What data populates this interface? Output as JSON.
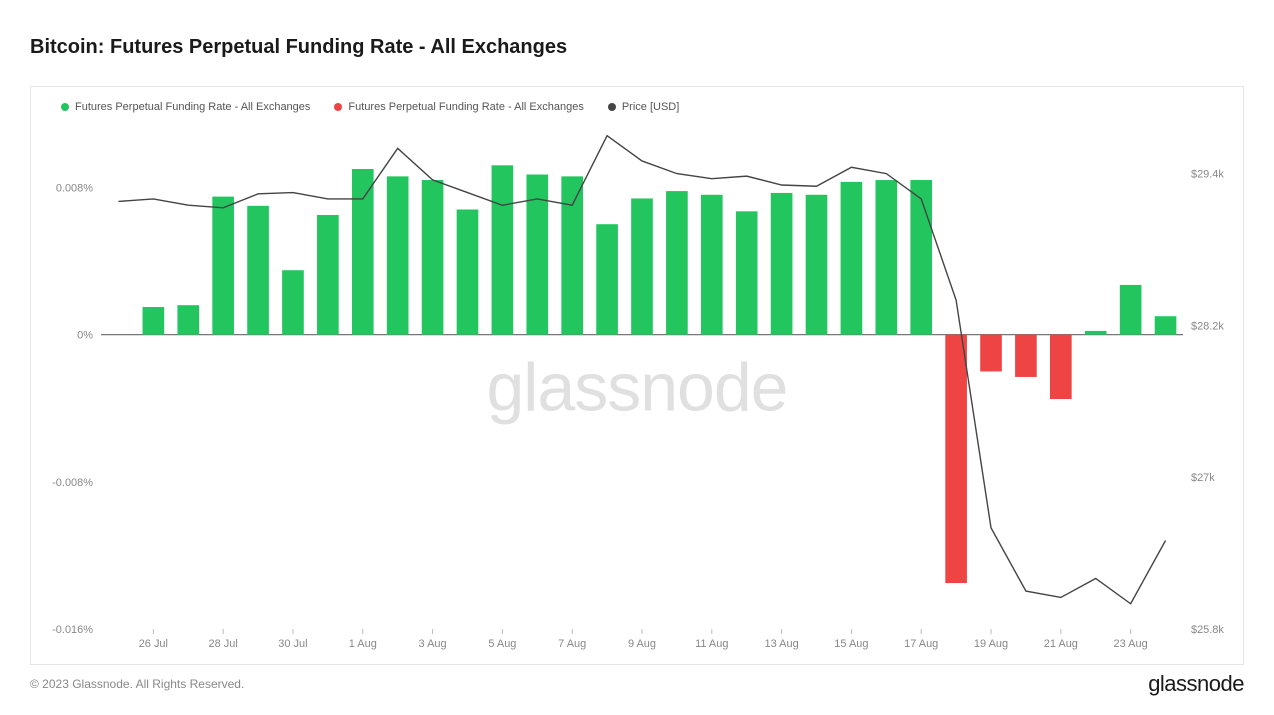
{
  "title": "Bitcoin: Futures Perpetual Funding Rate - All Exchanges",
  "copyright": "© 2023 Glassnode. All Rights Reserved.",
  "brand": "glassnode",
  "watermark": "glassnode",
  "legend": {
    "positive": "Futures Perpetual Funding Rate - All Exchanges",
    "negative": "Futures Perpetual Funding Rate - All Exchanges",
    "price": "Price [USD]"
  },
  "chart": {
    "type": "bar+line",
    "background_color": "#ffffff",
    "border_color": "#e5e5e5",
    "left_axis": {
      "min": -0.016,
      "max": 0.0115,
      "ticks": [
        {
          "v": 0.008,
          "label": "0.008%"
        },
        {
          "v": 0.0,
          "label": "0%"
        },
        {
          "v": -0.008,
          "label": "-0.008%"
        },
        {
          "v": -0.016,
          "label": "-0.016%"
        }
      ],
      "label_color": "#888888",
      "label_fontsize": 11
    },
    "right_axis": {
      "min": 25800,
      "max": 29800,
      "ticks": [
        {
          "v": 29400,
          "label": "$29.4k"
        },
        {
          "v": 28200,
          "label": "$28.2k"
        },
        {
          "v": 27000,
          "label": "$27k"
        },
        {
          "v": 25800,
          "label": "$25.8k"
        }
      ],
      "label_color": "#888888",
      "label_fontsize": 11
    },
    "x_axis": {
      "labels": [
        "26 Jul",
        "28 Jul",
        "30 Jul",
        "1 Aug",
        "3 Aug",
        "5 Aug",
        "7 Aug",
        "9 Aug",
        "11 Aug",
        "13 Aug",
        "15 Aug",
        "17 Aug",
        "19 Aug",
        "21 Aug",
        "23 Aug"
      ],
      "label_indices": [
        1,
        3,
        5,
        7,
        9,
        11,
        13,
        15,
        17,
        19,
        21,
        23,
        25,
        27,
        29
      ],
      "label_color": "#888888",
      "label_fontsize": 11
    },
    "bar_width_ratio": 0.62,
    "positive_color": "#22c55e",
    "negative_color": "#ef4444",
    "zero_line_color": "#777777",
    "zero_line_width": 1.2,
    "bars": [
      null,
      0.0015,
      0.0016,
      0.0075,
      0.007,
      0.0035,
      0.0065,
      0.009,
      0.0086,
      0.0084,
      0.0068,
      0.0092,
      0.0087,
      0.0086,
      0.006,
      0.0074,
      0.0078,
      0.0076,
      0.0067,
      0.0077,
      0.0076,
      0.0083,
      0.0084,
      0.0084,
      -0.0135,
      -0.002,
      -0.0023,
      -0.0035,
      0.0002,
      0.0027,
      0.001
    ],
    "line": {
      "color": "#444444",
      "width": 1.4,
      "values": [
        29180,
        29200,
        29150,
        29130,
        29240,
        29250,
        29200,
        29200,
        29600,
        29350,
        29250,
        29150,
        29200,
        29150,
        29700,
        29500,
        29400,
        29360,
        29380,
        29310,
        29300,
        29450,
        29400,
        29200,
        28400,
        26600,
        26100,
        26050,
        26200,
        26000,
        26500
      ]
    }
  }
}
